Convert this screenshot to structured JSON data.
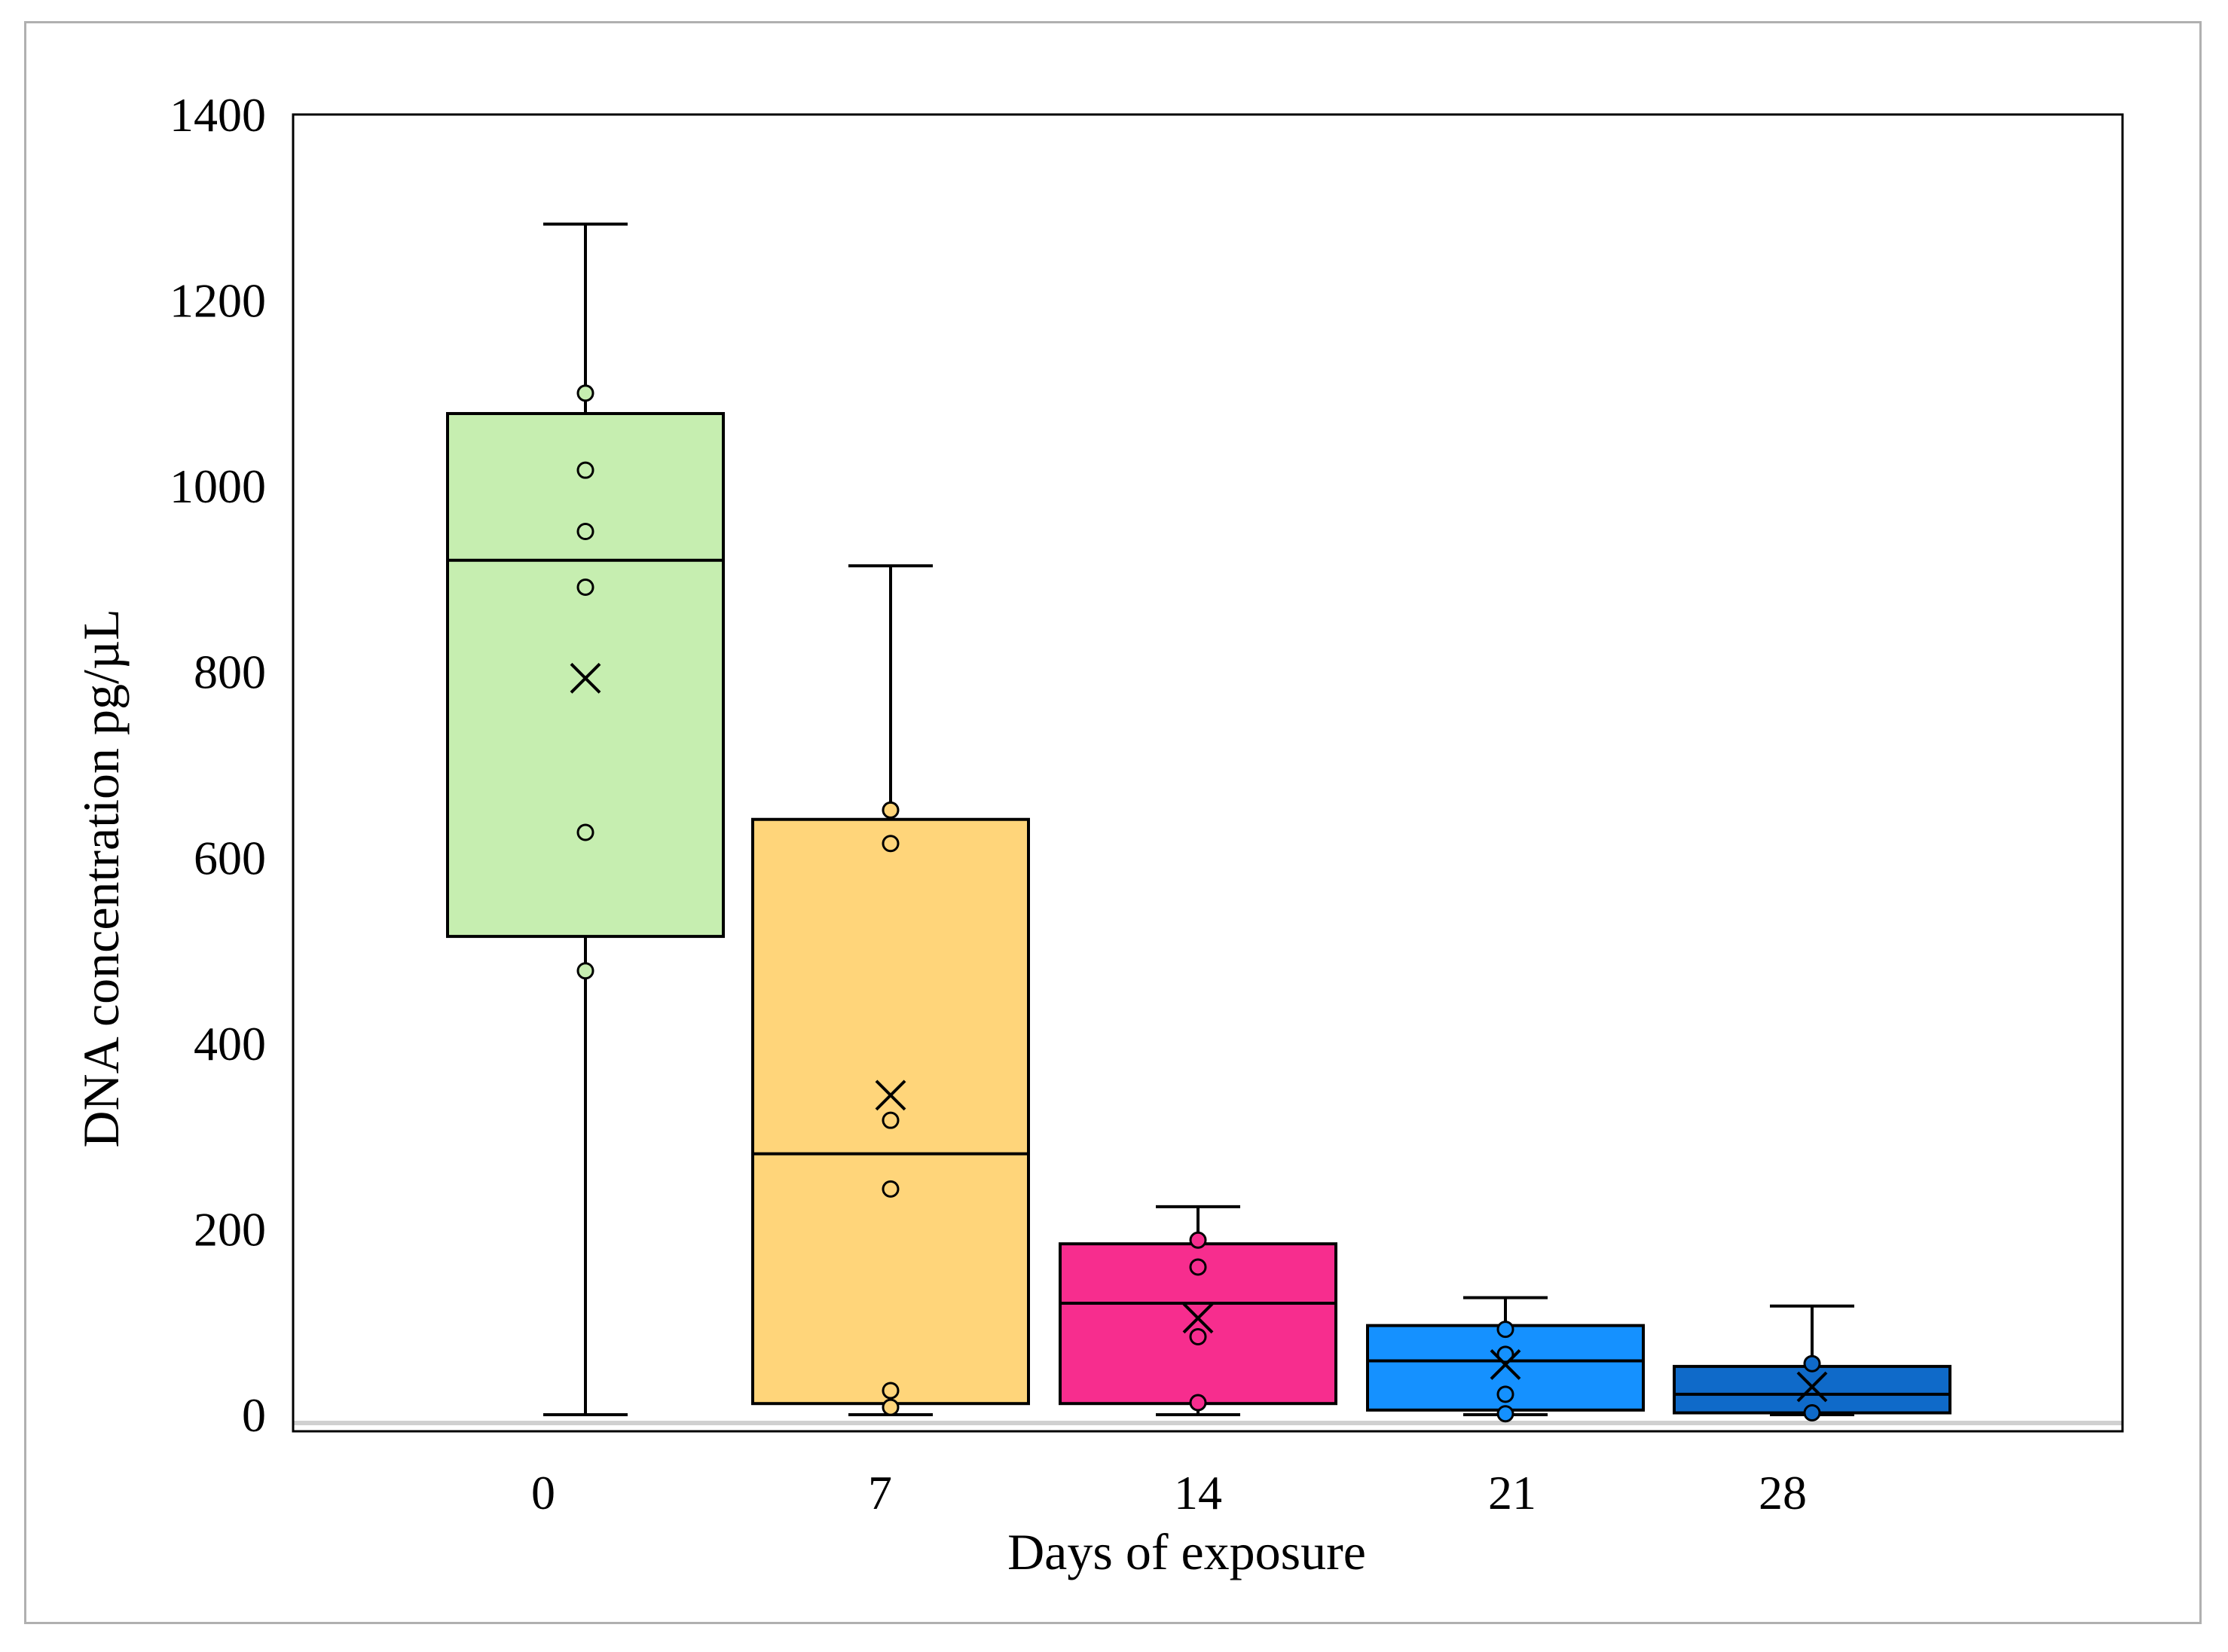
{
  "chart_data": {
    "type": "box",
    "xlabel": "Days of exposure",
    "ylabel": "DNA concentration  pg/µL",
    "ylim": [
      0,
      1400
    ],
    "yticks": [
      0,
      200,
      400,
      600,
      800,
      1000,
      1200,
      1400
    ],
    "grid": false,
    "categories": [
      "0",
      "7",
      "14",
      "21",
      "28"
    ],
    "boxes": [
      {
        "category": "0",
        "color": "#c6eeb0",
        "min": 0,
        "q1": 515,
        "median": 920,
        "q3": 1078,
        "max": 1282,
        "mean": 793,
        "points": [
          1100,
          1017,
          951,
          891,
          627,
          478
        ]
      },
      {
        "category": "7",
        "color": "#ffd57a",
        "min": 0,
        "q1": 12,
        "median": 281,
        "q3": 641,
        "max": 914,
        "mean": 344,
        "points": [
          651,
          615,
          317,
          243,
          26,
          8
        ]
      },
      {
        "category": "14",
        "color": "#f72d8e",
        "min": 0,
        "q1": 12,
        "median": 120,
        "q3": 184,
        "max": 224,
        "mean": 104,
        "points": [
          188,
          159,
          84,
          13
        ]
      },
      {
        "category": "21",
        "color": "#1591ff",
        "min": 0,
        "q1": 5,
        "median": 58,
        "q3": 96,
        "max": 126,
        "mean": 54,
        "points": [
          92,
          65,
          22,
          1
        ]
      },
      {
        "category": "28",
        "color": "#0f6ac9",
        "min": 0,
        "q1": 2,
        "median": 22,
        "q3": 52,
        "max": 117,
        "mean": 30,
        "points": [
          55,
          2
        ]
      }
    ]
  }
}
